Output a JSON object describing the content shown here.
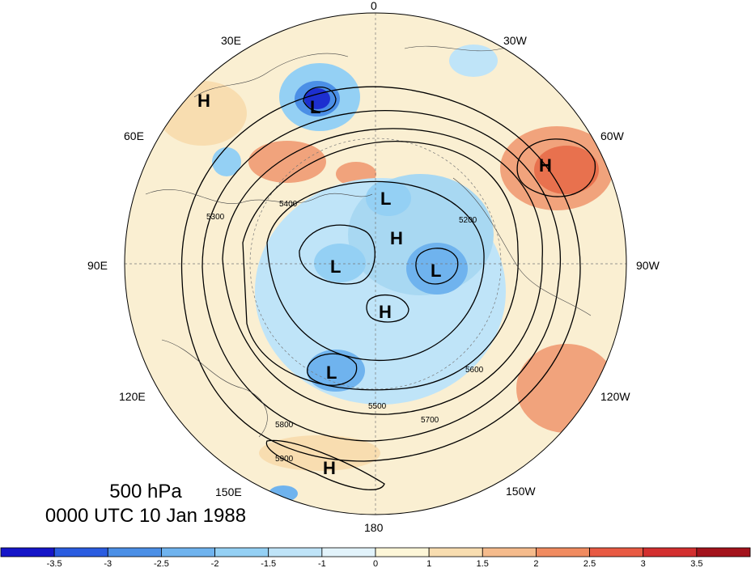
{
  "title": {
    "level": "500 hPa",
    "time": "0000 UTC 10 Jan 1988"
  },
  "longitude_labels": [
    "0",
    "30W",
    "60W",
    "90W",
    "120W",
    "150W",
    "180",
    "150E",
    "120E",
    "90E",
    "60E",
    "30E"
  ],
  "contour_labels": [
    "5200",
    "5300",
    "5400",
    "5500",
    "5600",
    "5700",
    "5800",
    "5900"
  ],
  "pressure_centers": [
    {
      "type": "L",
      "label": "L"
    },
    {
      "type": "L",
      "label": "L"
    },
    {
      "type": "L",
      "label": "L"
    },
    {
      "type": "L",
      "label": "L"
    },
    {
      "type": "L",
      "label": "L"
    },
    {
      "type": "H",
      "label": "H"
    },
    {
      "type": "H",
      "label": "H"
    },
    {
      "type": "H",
      "label": "H"
    },
    {
      "type": "H",
      "label": "H"
    },
    {
      "type": "H",
      "label": "H"
    }
  ],
  "colorbar": {
    "tick_labels": [
      "-3.5",
      "-3",
      "-2.5",
      "-2",
      "-1.5",
      "-1",
      "0",
      "1",
      "1.5",
      "2",
      "2.5",
      "3",
      "3.5"
    ],
    "colors": [
      "#1515c8",
      "#2a5ce0",
      "#4b8fe6",
      "#6fb3ee",
      "#94d0f4",
      "#bfe4f8",
      "#e2f3fb",
      "#fdf6d8",
      "#f8ddb0",
      "#f5bb8c",
      "#f08b60",
      "#e85a43",
      "#d32f2f",
      "#a3131c"
    ]
  },
  "map_colors": {
    "land_background": "#faefd2",
    "warm_anomaly": "#f1a37c",
    "strong_warm": "#e8714e",
    "cold_anomaly": "#a8d8f2",
    "strong_cold": "#5c9de8",
    "deep_cold": "#1d2fd0"
  }
}
